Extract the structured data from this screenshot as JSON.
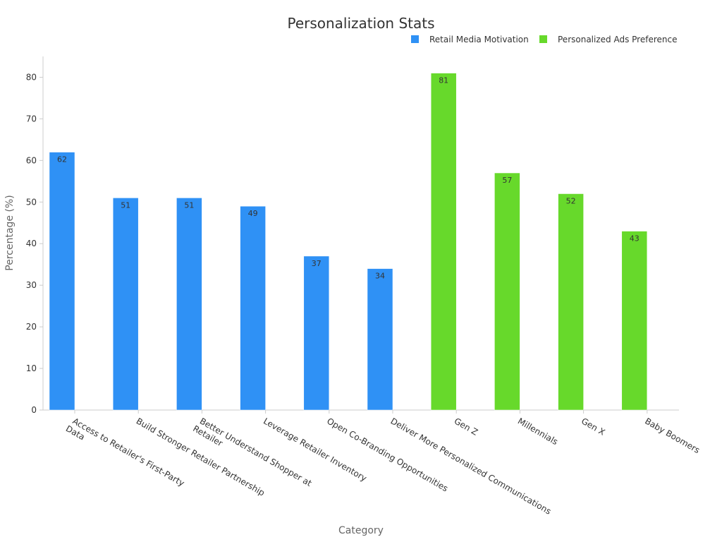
{
  "chart_data": {
    "type": "bar",
    "title": "Personalization Stats",
    "xlabel": "Category",
    "ylabel": "Percentage (%)",
    "ylim": [
      0,
      85
    ],
    "yticks": [
      0,
      10,
      20,
      30,
      40,
      50,
      60,
      70,
      80
    ],
    "grid": false,
    "legend_position": "top-right",
    "categories": [
      "Access to Retailer's First-Party Data",
      "Build Stronger Retailer Partnership",
      "Better Understand Shopper at Retailer",
      "Leverage Retailer Inventory",
      "Open Co-Branding Opportunities",
      "Deliver More Personalized Communications",
      "Gen Z",
      "Millennials",
      "Gen X",
      "Baby Boomers"
    ],
    "tick_lines": [
      [
        "Access to Retailer's First-Party",
        "Data"
      ],
      [
        "Build Stronger Retailer Partnership"
      ],
      [
        "Better Understand Shopper at",
        "Retailer"
      ],
      [
        "Leverage Retailer Inventory"
      ],
      [
        "Open Co-Branding Opportunities"
      ],
      [
        "Deliver More Personalized Communications"
      ],
      [
        "Gen Z"
      ],
      [
        "Millennials"
      ],
      [
        "Gen X"
      ],
      [
        "Baby Boomers"
      ]
    ],
    "series": [
      {
        "name": "Retail Media Motivation",
        "color": "#2f91f5",
        "values": [
          62,
          51,
          51,
          49,
          37,
          34,
          null,
          null,
          null,
          null
        ]
      },
      {
        "name": "Personalized Ads Preference",
        "color": "#67d92b",
        "values": [
          null,
          null,
          null,
          null,
          null,
          null,
          81,
          57,
          52,
          43
        ]
      }
    ]
  }
}
